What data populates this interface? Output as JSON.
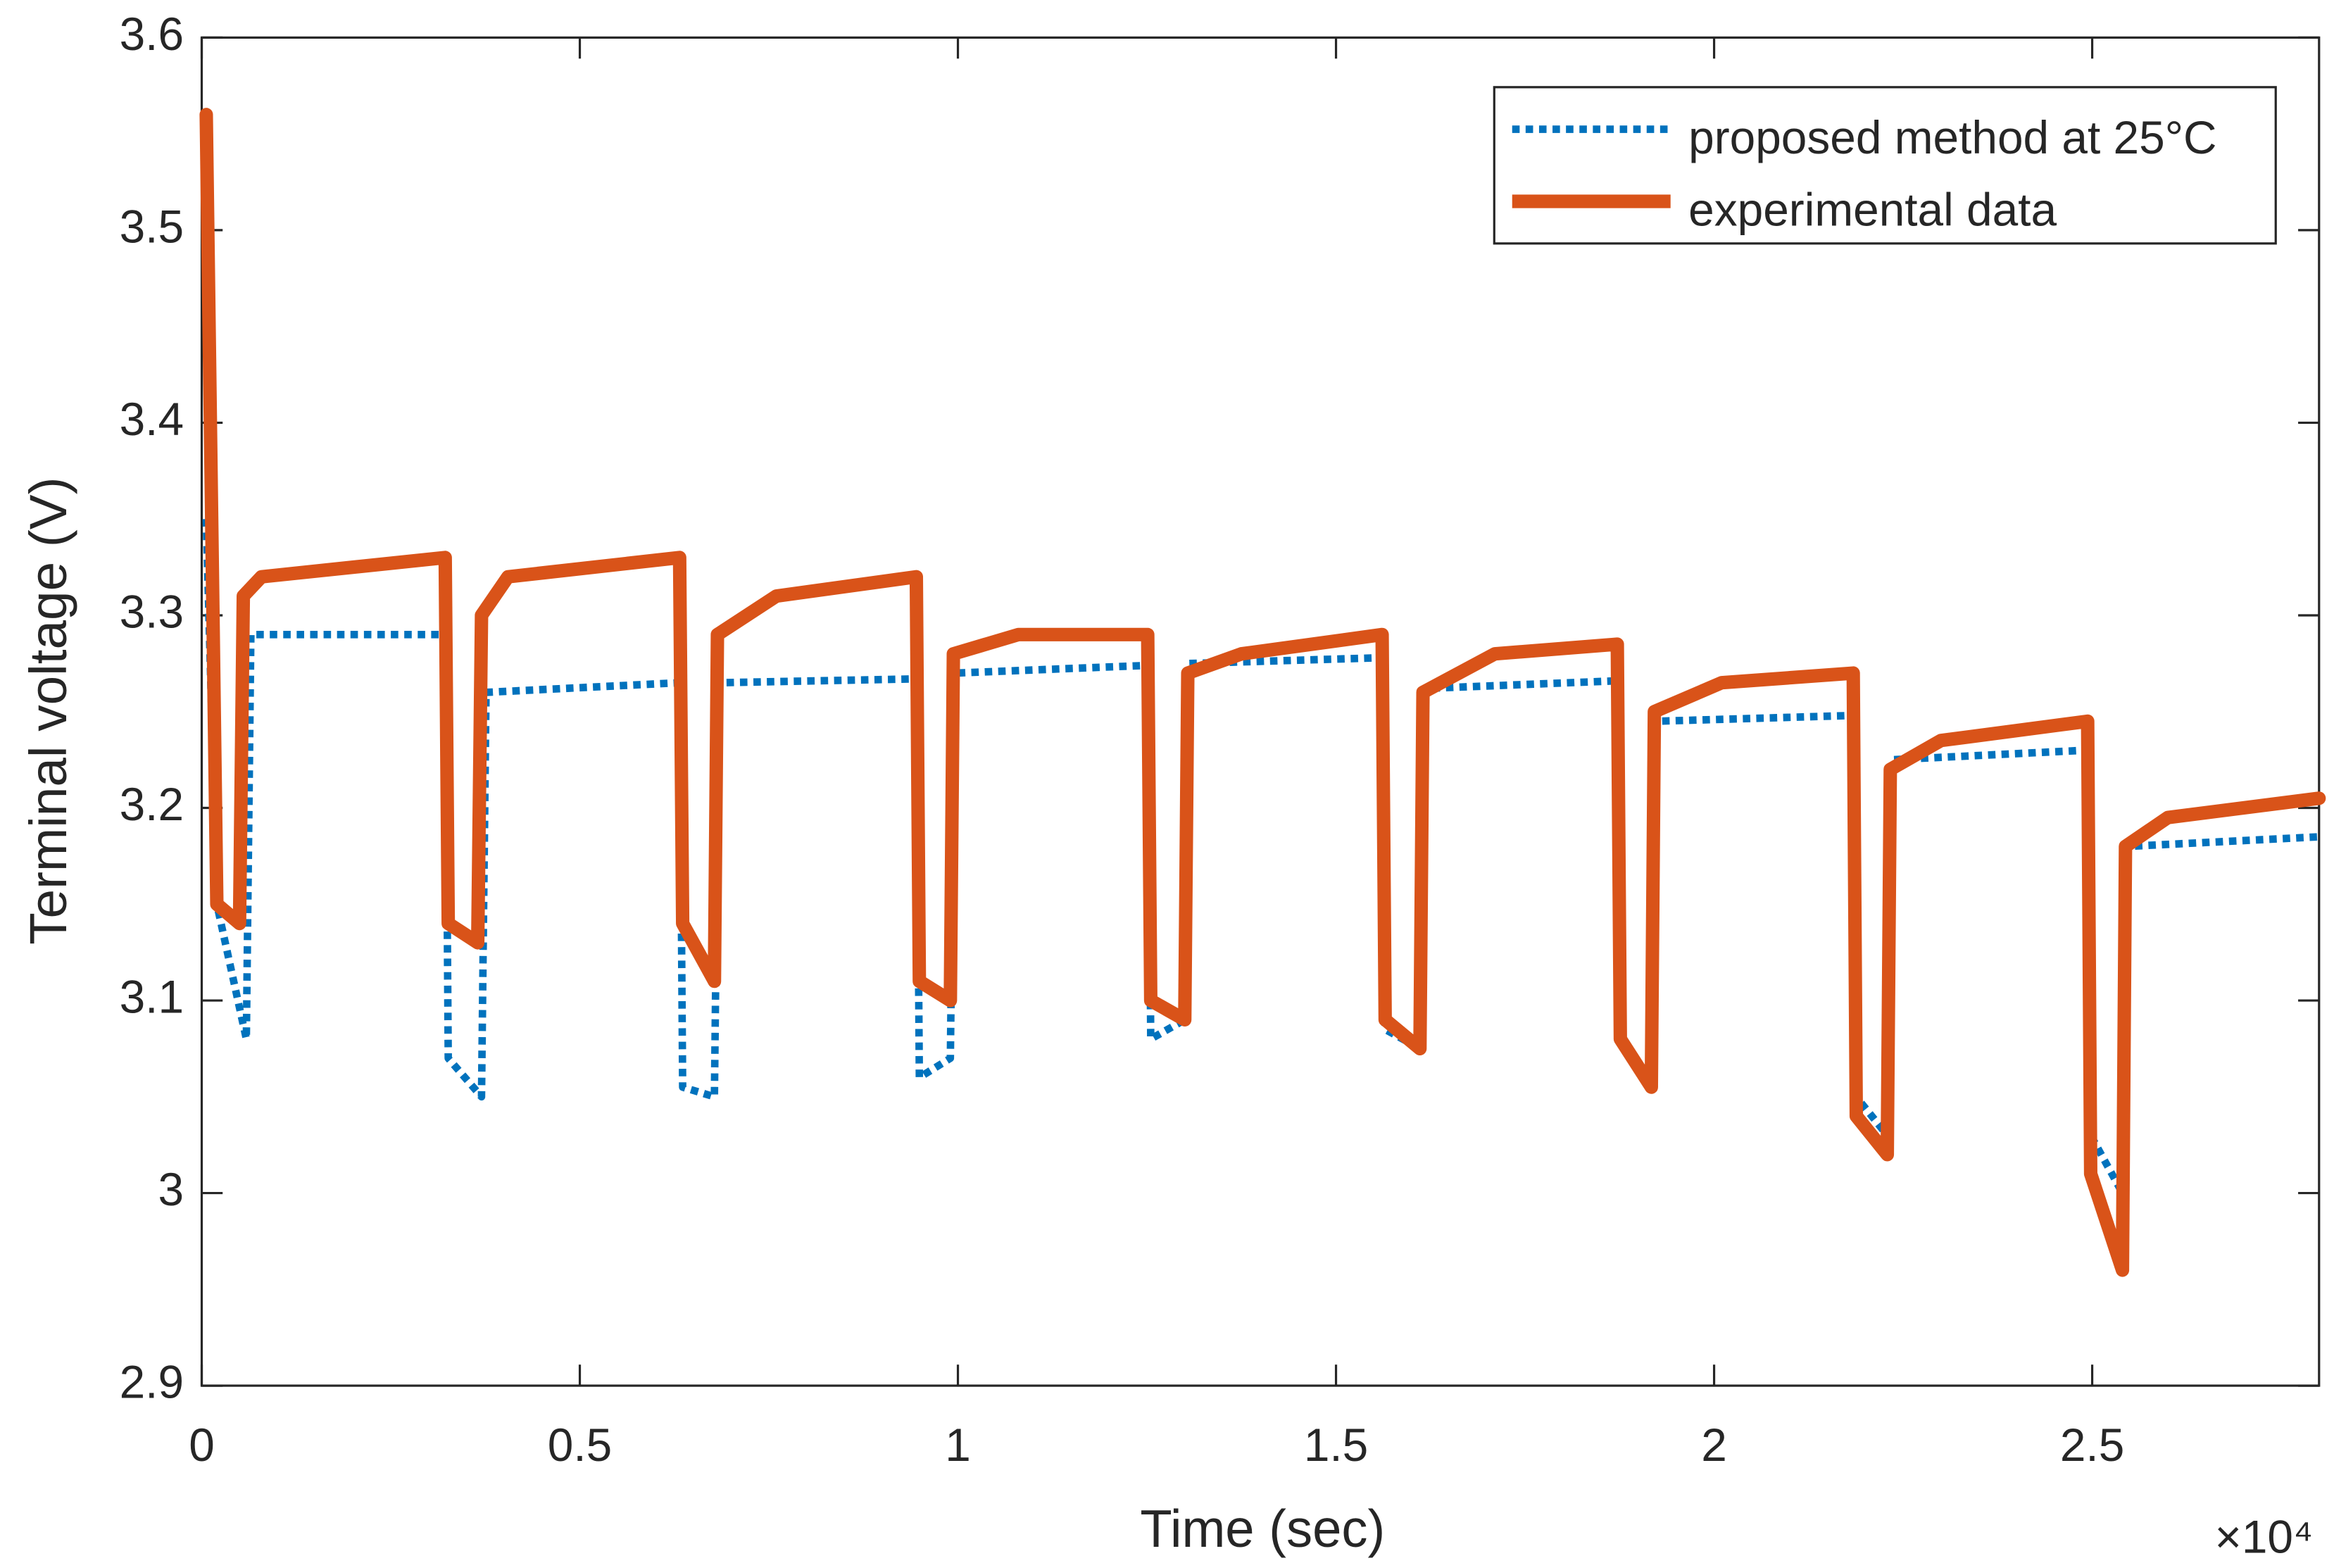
{
  "chart_data": {
    "type": "line",
    "xlabel": "Time (sec)",
    "ylabel": "Terminal voltage (V)",
    "x_multiplier": "×10⁴",
    "xlim": [
      0,
      28000
    ],
    "ylim": [
      2.9,
      3.6
    ],
    "xticks": [
      0,
      {
        "value": 5000,
        "label": "0.5"
      },
      {
        "value": 10000,
        "label": "1"
      },
      {
        "value": 15000,
        "label": "1.5"
      },
      {
        "value": 20000,
        "label": "2"
      },
      {
        "value": 25000,
        "label": "2.5"
      }
    ],
    "yticks": [
      2.9,
      3,
      3.1,
      3.2,
      3.3,
      3.4,
      3.5,
      3.6
    ],
    "legend": "top-right",
    "grid": false,
    "series": [
      {
        "name": "proposed method at 25°C",
        "color": "#0072bd",
        "style": "dotted",
        "x": [
          60,
          200,
          590,
          650,
          3220,
          3260,
          3700,
          3760,
          6320,
          6360,
          6780,
          6840,
          9450,
          9490,
          9900,
          9960,
          12510,
          12550,
          13000,
          13060,
          15610,
          15650,
          16110,
          16170,
          18720,
          18760,
          19170,
          19230,
          21840,
          21880,
          22290,
          22350,
          24940,
          24980,
          25400,
          25460,
          28000
        ],
        "values": [
          3.35,
          3.15,
          3.08,
          3.29,
          3.29,
          3.07,
          3.05,
          3.26,
          3.265,
          3.055,
          3.05,
          3.265,
          3.267,
          3.06,
          3.07,
          3.27,
          3.274,
          3.08,
          3.09,
          3.275,
          3.278,
          3.085,
          3.075,
          3.262,
          3.266,
          3.08,
          3.055,
          3.245,
          3.248,
          3.05,
          3.03,
          3.225,
          3.23,
          3.03,
          3.0,
          3.18,
          3.185
        ]
      },
      {
        "name": "experimental data",
        "color": "#d95319",
        "style": "solid",
        "x": [
          60,
          200,
          500,
          550,
          790,
          3220,
          3260,
          3650,
          3700,
          4050,
          6320,
          6360,
          6780,
          6820,
          7600,
          9450,
          9490,
          9900,
          9940,
          10800,
          12510,
          12550,
          13000,
          13040,
          13750,
          15610,
          15650,
          16110,
          16150,
          17100,
          18720,
          18760,
          19170,
          19210,
          20100,
          21840,
          21880,
          22290,
          22330,
          23000,
          24940,
          24980,
          25400,
          25440,
          26000,
          28000
        ],
        "values": [
          3.56,
          3.15,
          3.14,
          3.31,
          3.32,
          3.33,
          3.14,
          3.13,
          3.3,
          3.32,
          3.33,
          3.14,
          3.11,
          3.29,
          3.31,
          3.32,
          3.11,
          3.1,
          3.28,
          3.29,
          3.29,
          3.1,
          3.09,
          3.27,
          3.28,
          3.29,
          3.09,
          3.075,
          3.26,
          3.28,
          3.285,
          3.08,
          3.055,
          3.25,
          3.265,
          3.27,
          3.04,
          3.02,
          3.22,
          3.235,
          3.245,
          3.01,
          2.96,
          3.18,
          3.195,
          3.205
        ]
      }
    ]
  }
}
